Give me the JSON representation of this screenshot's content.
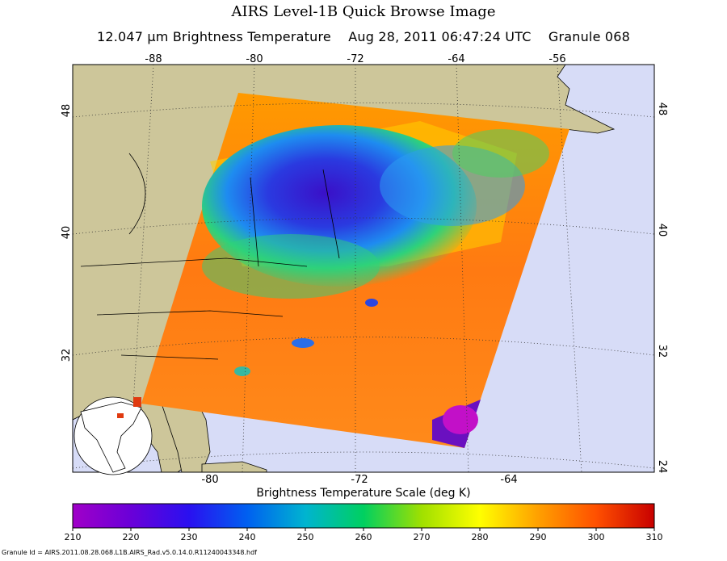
{
  "header": {
    "title": "AIRS Level-1B Quick Browse Image",
    "product_label": "12.047 μm Brightness Temperature",
    "datetime": "Aug 28, 2011 06:47:24 UTC",
    "granule": "Granule 068"
  },
  "map": {
    "top_lon_labels": [
      "-88",
      "-80",
      "-72",
      "-64",
      "-56"
    ],
    "bottom_lon_labels": [
      "-80",
      "-72",
      "-64"
    ],
    "left_lat_labels": [
      "48",
      "40",
      "32"
    ],
    "right_lat_labels": [
      "48",
      "40",
      "32",
      "24"
    ],
    "colors": {
      "ocean": "#d7dcf7",
      "land": "#cdc69a",
      "frame": "#000000"
    }
  },
  "colorbar": {
    "title": "Brightness Temperature Scale (deg K)",
    "ticks": [
      "210",
      "220",
      "230",
      "240",
      "250",
      "260",
      "270",
      "280",
      "290",
      "300",
      "310"
    ],
    "min": 210,
    "max": 310
  },
  "footer": {
    "granule_id": "Granule Id = AIRS.2011.08.28.068.L1B.AIRS_Rad.v5.0.14.0.R11240043348.hdf"
  }
}
